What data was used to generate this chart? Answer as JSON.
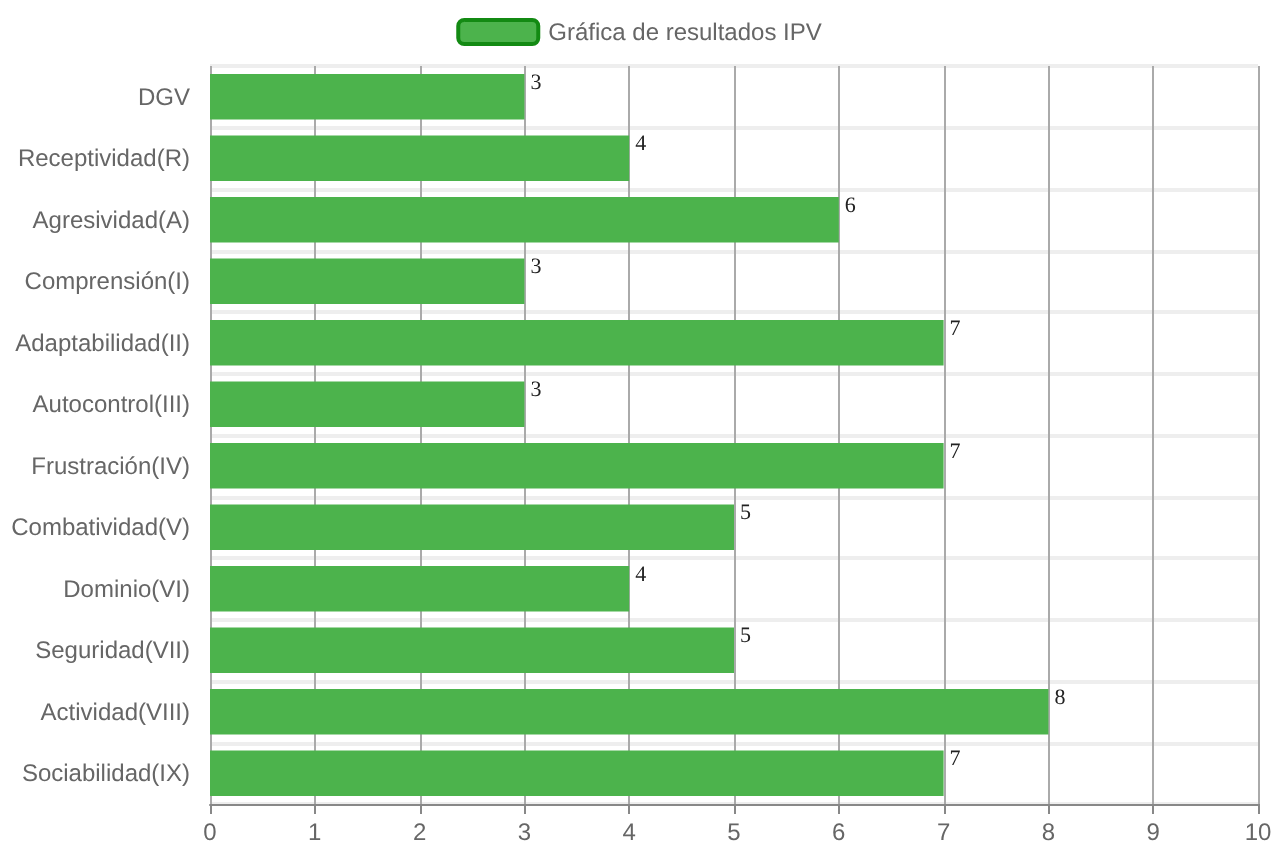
{
  "chart_data": {
    "type": "bar",
    "orientation": "horizontal",
    "categories": [
      "DGV",
      "Receptividad(R)",
      "Agresividad(A)",
      "Comprensión(I)",
      "Adaptabilidad(II)",
      "Autocontrol(III)",
      "Frustración(IV)",
      "Combatividad(V)",
      "Dominio(VI)",
      "Seguridad(VII)",
      "Actividad(VIII)",
      "Sociabilidad(IX)"
    ],
    "series": [
      {
        "name": "Gráfica de resultados IPV",
        "color": "#4cb34c",
        "values": [
          3,
          4,
          6,
          3,
          7,
          3,
          7,
          5,
          4,
          5,
          8,
          7
        ]
      }
    ],
    "xlim": [
      0,
      10
    ],
    "xticks": [
      0,
      1,
      2,
      3,
      4,
      5,
      6,
      7,
      8,
      9,
      10
    ],
    "grid": true,
    "legend": "top",
    "data_labels": true
  }
}
